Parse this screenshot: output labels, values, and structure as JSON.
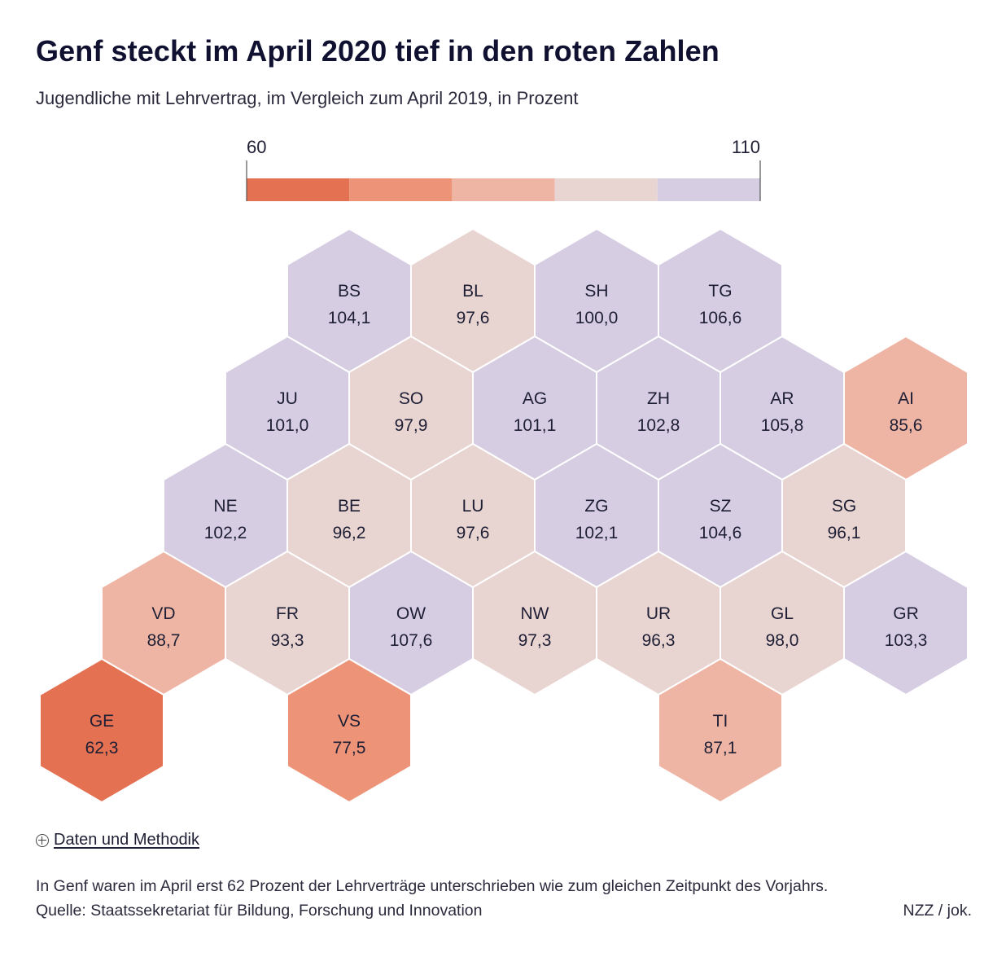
{
  "header": {
    "title": "Genf steckt im April 2020 tief in den roten Zahlen",
    "subtitle": "Jugendliche mit Lehrvertrag, im Vergleich zum April 2019, in Prozent"
  },
  "colors": {
    "bin1": "#e47152",
    "bin2": "#ec9378",
    "bin3": "#efb5a4",
    "bin4": "#e8d5d2",
    "bin5": "#d6cde3",
    "hex_stroke": "#ffffff",
    "text": "#1e1e34"
  },
  "chart_data": {
    "type": "hexbin-map",
    "legend": {
      "min_label": "60",
      "max_label": "110",
      "min": 60,
      "max": 110,
      "bins": 5
    },
    "cantons": [
      {
        "code": "BS",
        "value": 104.1,
        "label": "104,1",
        "row": 0,
        "col": 4
      },
      {
        "code": "BL",
        "value": 97.6,
        "label": "97,6",
        "row": 0,
        "col": 6
      },
      {
        "code": "SH",
        "value": 100.0,
        "label": "100,0",
        "row": 0,
        "col": 8
      },
      {
        "code": "TG",
        "value": 106.6,
        "label": "106,6",
        "row": 0,
        "col": 10
      },
      {
        "code": "JU",
        "value": 101.0,
        "label": "101,0",
        "row": 1,
        "col": 3
      },
      {
        "code": "SO",
        "value": 97.9,
        "label": "97,9",
        "row": 1,
        "col": 5
      },
      {
        "code": "AG",
        "value": 101.1,
        "label": "101,1",
        "row": 1,
        "col": 7
      },
      {
        "code": "ZH",
        "value": 102.8,
        "label": "102,8",
        "row": 1,
        "col": 9
      },
      {
        "code": "AR",
        "value": 105.8,
        "label": "105,8",
        "row": 1,
        "col": 11
      },
      {
        "code": "AI",
        "value": 85.6,
        "label": "85,6",
        "row": 1,
        "col": 13
      },
      {
        "code": "NE",
        "value": 102.2,
        "label": "102,2",
        "row": 2,
        "col": 2
      },
      {
        "code": "BE",
        "value": 96.2,
        "label": "96,2",
        "row": 2,
        "col": 4
      },
      {
        "code": "LU",
        "value": 97.6,
        "label": "97,6",
        "row": 2,
        "col": 6
      },
      {
        "code": "ZG",
        "value": 102.1,
        "label": "102,1",
        "row": 2,
        "col": 8
      },
      {
        "code": "SZ",
        "value": 104.6,
        "label": "104,6",
        "row": 2,
        "col": 10
      },
      {
        "code": "SG",
        "value": 96.1,
        "label": "96,1",
        "row": 2,
        "col": 12
      },
      {
        "code": "VD",
        "value": 88.7,
        "label": "88,7",
        "row": 3,
        "col": 1
      },
      {
        "code": "FR",
        "value": 93.3,
        "label": "93,3",
        "row": 3,
        "col": 3
      },
      {
        "code": "OW",
        "value": 107.6,
        "label": "107,6",
        "row": 3,
        "col": 5
      },
      {
        "code": "NW",
        "value": 97.3,
        "label": "97,3",
        "row": 3,
        "col": 7
      },
      {
        "code": "UR",
        "value": 96.3,
        "label": "96,3",
        "row": 3,
        "col": 9
      },
      {
        "code": "GL",
        "value": 98.0,
        "label": "98,0",
        "row": 3,
        "col": 11
      },
      {
        "code": "GR",
        "value": 103.3,
        "label": "103,3",
        "row": 3,
        "col": 13
      },
      {
        "code": "GE",
        "value": 62.3,
        "label": "62,3",
        "row": 4,
        "col": 0
      },
      {
        "code": "VS",
        "value": 77.5,
        "label": "77,5",
        "row": 4,
        "col": 4
      },
      {
        "code": "TI",
        "value": 87.1,
        "label": "87,1",
        "row": 4,
        "col": 10
      }
    ]
  },
  "methodik": {
    "label": "Daten und Methodik"
  },
  "footer": {
    "note": "In Genf waren im April erst 62 Prozent der Lehrverträge unterschrieben wie zum gleichen Zeitpunkt des Vorjahrs.",
    "source": "Quelle: Staatssekretariat für Bildung, Forschung und Innovation",
    "credit": "NZZ / jok."
  }
}
